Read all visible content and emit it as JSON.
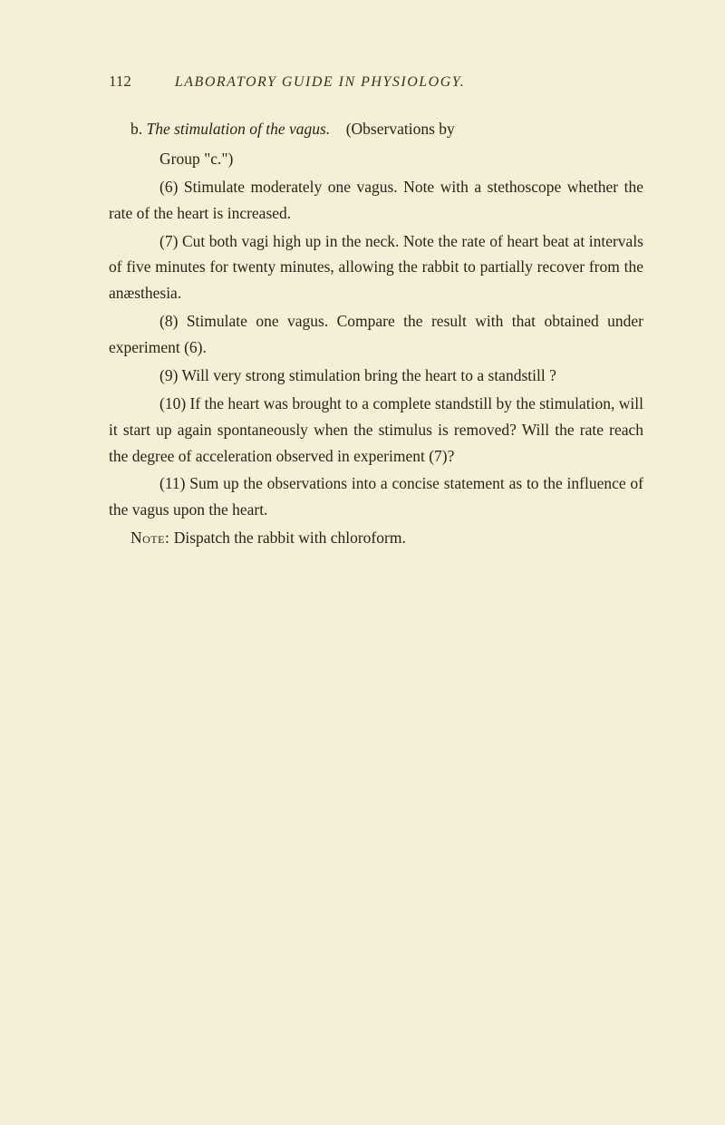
{
  "page_number": "112",
  "running_head": "LABORATORY GUIDE IN PHYSIOLOGY.",
  "section": {
    "label": "b.",
    "title_italic": "The stimulation of the vagus.",
    "title_after": "(Observations by",
    "group_line": "Group \"c.\")",
    "items": [
      "(6) Stimulate moderately one vagus. Note with a stethoscope whether the rate of the heart is increased.",
      "(7) Cut both vagi high up in the neck. Note the rate of heart beat at intervals of five minutes for twenty minutes, allowing the rabbit to partially recover from the anæsthesia.",
      "(8) Stimulate one vagus. Compare the result with that obtained under experiment (6).",
      "(9) Will very strong stimulation bring the heart to a standstill ?",
      "(10) If the heart was brought to a complete standstill by the stimulation, will it start up again spontaneously when the stimulus is removed? Will the rate reach the degree of acceleration observed in experiment (7)?",
      "(11) Sum up the observations into a concise statement as to the influence of the vagus upon the heart."
    ],
    "note_label": "Note:",
    "note_text": "Dispatch the rabbit with chloroform."
  }
}
